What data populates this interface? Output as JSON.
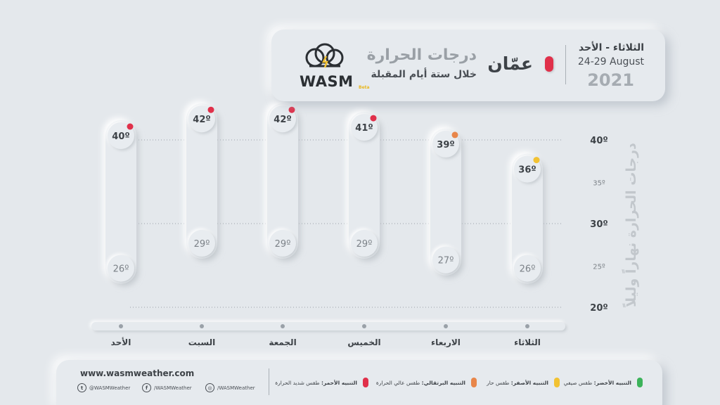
{
  "header": {
    "logo_text": "WASM",
    "logo_beta": "Beta",
    "title": "درجات الحرارة",
    "subtitle": "خلال ستة أيام المقبلة",
    "city": "عمّان",
    "days_range": "الثلاثاء - الأحد",
    "date_range": "24-29 August",
    "year": "2021",
    "city_dot_color": "#e0304a"
  },
  "chart_data": {
    "type": "range-bar",
    "ylabel": "درجات الحرارة نهاراً وليلاً",
    "yticks": [
      {
        "value": 40,
        "label": "40º",
        "major": true
      },
      {
        "value": 35,
        "label": "35º",
        "major": false
      },
      {
        "value": 30,
        "label": "30º",
        "major": true
      },
      {
        "value": 25,
        "label": "25º",
        "major": false
      },
      {
        "value": 20,
        "label": "20º",
        "major": true
      }
    ],
    "ylim": [
      20,
      40
    ],
    "days": [
      {
        "day": "الأحد",
        "high": 40,
        "low": 26,
        "high_label": "40º",
        "low_label": "26º",
        "alert_color": "#e0304a"
      },
      {
        "day": "السبت",
        "high": 42,
        "low": 29,
        "high_label": "42º",
        "low_label": "29º",
        "alert_color": "#e0304a"
      },
      {
        "day": "الجمعة",
        "high": 42,
        "low": 29,
        "high_label": "42º",
        "low_label": "29º",
        "alert_color": "#e0304a"
      },
      {
        "day": "الخميس",
        "high": 41,
        "low": 29,
        "high_label": "41º",
        "low_label": "29º",
        "alert_color": "#e0304a"
      },
      {
        "day": "الاربعاء",
        "high": 39,
        "low": 27,
        "high_label": "39º",
        "low_label": "27º",
        "alert_color": "#e8864a"
      },
      {
        "day": "الثلاثاء",
        "high": 36,
        "low": 26,
        "high_label": "36º",
        "low_label": "26º",
        "alert_color": "#f2c232"
      }
    ]
  },
  "footer": {
    "website": "www.wasmweather.com",
    "twitter": "@WASMWeather",
    "facebook": "/WASMWeather",
    "instagram": "/WASMWeather",
    "twitter_icon": "twitter-icon",
    "facebook_icon": "facebook-icon",
    "instagram_icon": "instagram-icon",
    "alerts": [
      {
        "name": "التنبيه الأحمر:",
        "desc": "طقس شديد الحرارة",
        "color": "#e0304a"
      },
      {
        "name": "التنبيه البرتقالي:",
        "desc": "طقس عالي الحرارة",
        "color": "#e8864a"
      },
      {
        "name": "التنبيه الأصفر:",
        "desc": "طقس حار",
        "color": "#f2c232"
      },
      {
        "name": "التنبيه الأخضر:",
        "desc": "طقس صيفي",
        "color": "#3cb35a"
      }
    ]
  }
}
